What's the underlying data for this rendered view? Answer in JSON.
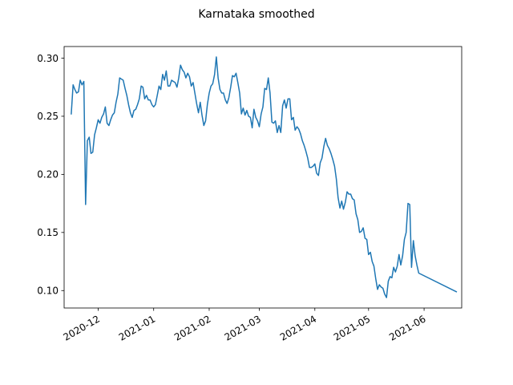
{
  "chart_data": {
    "type": "line",
    "title": "Karnataka smoothed",
    "xlabel": "",
    "ylabel": "",
    "x_type": "date",
    "xlim": [
      "2020-11-12",
      "2021-06-22"
    ],
    "ylim": [
      0.085,
      0.31
    ],
    "grid": false,
    "legend": "none",
    "color": "#1f77b4",
    "x_ticks": [
      {
        "value": "2020-12-01",
        "label": "2020-12"
      },
      {
        "value": "2021-01-01",
        "label": "2021-01"
      },
      {
        "value": "2021-02-01",
        "label": "2021-02"
      },
      {
        "value": "2021-03-01",
        "label": "2021-03"
      },
      {
        "value": "2021-04-01",
        "label": "2021-04"
      },
      {
        "value": "2021-05-01",
        "label": "2021-05"
      },
      {
        "value": "2021-06-01",
        "label": "2021-06"
      }
    ],
    "y_ticks": [
      {
        "value": 0.1,
        "label": "0.10"
      },
      {
        "value": 0.15,
        "label": "0.15"
      },
      {
        "value": 0.2,
        "label": "0.20"
      },
      {
        "value": 0.25,
        "label": "0.25"
      },
      {
        "value": 0.3,
        "label": "0.30"
      }
    ],
    "series": [
      {
        "points": [
          [
            "2020-11-16",
            0.252
          ],
          [
            "2020-11-17",
            0.277
          ],
          [
            "2020-11-18",
            0.273
          ],
          [
            "2020-11-19",
            0.27
          ],
          [
            "2020-11-20",
            0.271
          ],
          [
            "2020-11-21",
            0.281
          ],
          [
            "2020-11-22",
            0.277
          ],
          [
            "2020-11-23",
            0.28
          ],
          [
            "2020-11-24",
            0.174
          ],
          [
            "2020-11-25",
            0.229
          ],
          [
            "2020-11-26",
            0.232
          ],
          [
            "2020-11-27",
            0.218
          ],
          [
            "2020-11-28",
            0.219
          ],
          [
            "2020-11-29",
            0.234
          ],
          [
            "2020-11-30",
            0.24
          ],
          [
            "2020-12-01",
            0.247
          ],
          [
            "2020-12-02",
            0.244
          ],
          [
            "2020-12-03",
            0.249
          ],
          [
            "2020-12-04",
            0.252
          ],
          [
            "2020-12-05",
            0.258
          ],
          [
            "2020-12-06",
            0.244
          ],
          [
            "2020-12-07",
            0.242
          ],
          [
            "2020-12-08",
            0.247
          ],
          [
            "2020-12-09",
            0.251
          ],
          [
            "2020-12-10",
            0.253
          ],
          [
            "2020-12-11",
            0.262
          ],
          [
            "2020-12-12",
            0.269
          ],
          [
            "2020-12-13",
            0.283
          ],
          [
            "2020-12-14",
            0.282
          ],
          [
            "2020-12-15",
            0.281
          ],
          [
            "2020-12-16",
            0.274
          ],
          [
            "2020-12-17",
            0.268
          ],
          [
            "2020-12-18",
            0.26
          ],
          [
            "2020-12-19",
            0.253
          ],
          [
            "2020-12-20",
            0.249
          ],
          [
            "2020-12-21",
            0.255
          ],
          [
            "2020-12-22",
            0.256
          ],
          [
            "2020-12-23",
            0.26
          ],
          [
            "2020-12-24",
            0.265
          ],
          [
            "2020-12-25",
            0.276
          ],
          [
            "2020-12-26",
            0.275
          ],
          [
            "2020-12-27",
            0.265
          ],
          [
            "2020-12-28",
            0.268
          ],
          [
            "2020-12-29",
            0.264
          ],
          [
            "2020-12-30",
            0.264
          ],
          [
            "2020-12-31",
            0.26
          ],
          [
            "2021-01-01",
            0.258
          ],
          [
            "2021-01-02",
            0.26
          ],
          [
            "2021-01-03",
            0.268
          ],
          [
            "2021-01-04",
            0.276
          ],
          [
            "2021-01-05",
            0.273
          ],
          [
            "2021-01-06",
            0.286
          ],
          [
            "2021-01-07",
            0.281
          ],
          [
            "2021-01-08",
            0.289
          ],
          [
            "2021-01-09",
            0.276
          ],
          [
            "2021-01-10",
            0.276
          ],
          [
            "2021-01-11",
            0.281
          ],
          [
            "2021-01-12",
            0.28
          ],
          [
            "2021-01-13",
            0.279
          ],
          [
            "2021-01-14",
            0.275
          ],
          [
            "2021-01-15",
            0.283
          ],
          [
            "2021-01-16",
            0.294
          ],
          [
            "2021-01-17",
            0.29
          ],
          [
            "2021-01-18",
            0.288
          ],
          [
            "2021-01-19",
            0.283
          ],
          [
            "2021-01-20",
            0.287
          ],
          [
            "2021-01-21",
            0.284
          ],
          [
            "2021-01-22",
            0.276
          ],
          [
            "2021-01-23",
            0.279
          ],
          [
            "2021-01-24",
            0.27
          ],
          [
            "2021-01-25",
            0.261
          ],
          [
            "2021-01-26",
            0.253
          ],
          [
            "2021-01-27",
            0.262
          ],
          [
            "2021-01-28",
            0.251
          ],
          [
            "2021-01-29",
            0.242
          ],
          [
            "2021-01-30",
            0.246
          ],
          [
            "2021-01-31",
            0.26
          ],
          [
            "2021-02-01",
            0.27
          ],
          [
            "2021-02-02",
            0.276
          ],
          [
            "2021-02-03",
            0.278
          ],
          [
            "2021-02-04",
            0.286
          ],
          [
            "2021-02-05",
            0.301
          ],
          [
            "2021-02-06",
            0.283
          ],
          [
            "2021-02-07",
            0.273
          ],
          [
            "2021-02-08",
            0.27
          ],
          [
            "2021-02-09",
            0.27
          ],
          [
            "2021-02-10",
            0.264
          ],
          [
            "2021-02-11",
            0.261
          ],
          [
            "2021-02-12",
            0.266
          ],
          [
            "2021-02-13",
            0.275
          ],
          [
            "2021-02-14",
            0.285
          ],
          [
            "2021-02-15",
            0.284
          ],
          [
            "2021-02-16",
            0.287
          ],
          [
            "2021-02-17",
            0.279
          ],
          [
            "2021-02-18",
            0.27
          ],
          [
            "2021-02-19",
            0.252
          ],
          [
            "2021-02-20",
            0.257
          ],
          [
            "2021-02-21",
            0.251
          ],
          [
            "2021-02-22",
            0.255
          ],
          [
            "2021-02-23",
            0.25
          ],
          [
            "2021-02-24",
            0.249
          ],
          [
            "2021-02-25",
            0.24
          ],
          [
            "2021-02-26",
            0.256
          ],
          [
            "2021-02-27",
            0.249
          ],
          [
            "2021-02-28",
            0.246
          ],
          [
            "2021-03-01",
            0.241
          ],
          [
            "2021-03-02",
            0.252
          ],
          [
            "2021-03-03",
            0.258
          ],
          [
            "2021-03-04",
            0.274
          ],
          [
            "2021-03-05",
            0.273
          ],
          [
            "2021-03-06",
            0.283
          ],
          [
            "2021-03-07",
            0.27
          ],
          [
            "2021-03-08",
            0.245
          ],
          [
            "2021-03-09",
            0.244
          ],
          [
            "2021-03-10",
            0.246
          ],
          [
            "2021-03-11",
            0.236
          ],
          [
            "2021-03-12",
            0.242
          ],
          [
            "2021-03-13",
            0.236
          ],
          [
            "2021-03-14",
            0.259
          ],
          [
            "2021-03-15",
            0.264
          ],
          [
            "2021-03-16",
            0.257
          ],
          [
            "2021-03-17",
            0.265
          ],
          [
            "2021-03-18",
            0.265
          ],
          [
            "2021-03-19",
            0.247
          ],
          [
            "2021-03-20",
            0.249
          ],
          [
            "2021-03-21",
            0.238
          ],
          [
            "2021-03-22",
            0.241
          ],
          [
            "2021-03-23",
            0.239
          ],
          [
            "2021-03-24",
            0.235
          ],
          [
            "2021-03-25",
            0.229
          ],
          [
            "2021-03-26",
            0.225
          ],
          [
            "2021-03-27",
            0.22
          ],
          [
            "2021-03-28",
            0.214
          ],
          [
            "2021-03-29",
            0.206
          ],
          [
            "2021-03-30",
            0.206
          ],
          [
            "2021-03-31",
            0.207
          ],
          [
            "2021-04-01",
            0.209
          ],
          [
            "2021-04-02",
            0.201
          ],
          [
            "2021-04-03",
            0.199
          ],
          [
            "2021-04-04",
            0.21
          ],
          [
            "2021-04-05",
            0.214
          ],
          [
            "2021-04-06",
            0.224
          ],
          [
            "2021-04-07",
            0.231
          ],
          [
            "2021-04-08",
            0.225
          ],
          [
            "2021-04-09",
            0.222
          ],
          [
            "2021-04-10",
            0.218
          ],
          [
            "2021-04-11",
            0.213
          ],
          [
            "2021-04-12",
            0.207
          ],
          [
            "2021-04-13",
            0.196
          ],
          [
            "2021-04-14",
            0.18
          ],
          [
            "2021-04-15",
            0.171
          ],
          [
            "2021-04-16",
            0.177
          ],
          [
            "2021-04-17",
            0.17
          ],
          [
            "2021-04-18",
            0.176
          ],
          [
            "2021-04-19",
            0.185
          ],
          [
            "2021-04-20",
            0.183
          ],
          [
            "2021-04-21",
            0.183
          ],
          [
            "2021-04-22",
            0.179
          ],
          [
            "2021-04-23",
            0.178
          ],
          [
            "2021-04-24",
            0.166
          ],
          [
            "2021-04-25",
            0.161
          ],
          [
            "2021-04-26",
            0.15
          ],
          [
            "2021-04-27",
            0.151
          ],
          [
            "2021-04-28",
            0.154
          ],
          [
            "2021-04-29",
            0.145
          ],
          [
            "2021-04-30",
            0.144
          ],
          [
            "2021-05-01",
            0.131
          ],
          [
            "2021-05-02",
            0.133
          ],
          [
            "2021-05-03",
            0.125
          ],
          [
            "2021-05-04",
            0.121
          ],
          [
            "2021-05-05",
            0.11
          ],
          [
            "2021-05-06",
            0.101
          ],
          [
            "2021-05-07",
            0.105
          ],
          [
            "2021-05-08",
            0.103
          ],
          [
            "2021-05-09",
            0.102
          ],
          [
            "2021-05-10",
            0.097
          ],
          [
            "2021-05-11",
            0.094
          ],
          [
            "2021-05-12",
            0.108
          ],
          [
            "2021-05-13",
            0.112
          ],
          [
            "2021-05-14",
            0.111
          ],
          [
            "2021-05-15",
            0.12
          ],
          [
            "2021-05-16",
            0.116
          ],
          [
            "2021-05-17",
            0.121
          ],
          [
            "2021-05-18",
            0.131
          ],
          [
            "2021-05-19",
            0.122
          ],
          [
            "2021-05-20",
            0.13
          ],
          [
            "2021-05-21",
            0.144
          ],
          [
            "2021-05-22",
            0.15
          ],
          [
            "2021-05-23",
            0.175
          ],
          [
            "2021-05-24",
            0.174
          ],
          [
            "2021-05-25",
            0.12
          ],
          [
            "2021-05-26",
            0.143
          ],
          [
            "2021-05-27",
            0.13
          ],
          [
            "2021-05-28",
            0.122
          ],
          [
            "2021-05-29",
            0.115
          ],
          [
            "2021-06-19",
            0.099
          ]
        ]
      }
    ]
  }
}
